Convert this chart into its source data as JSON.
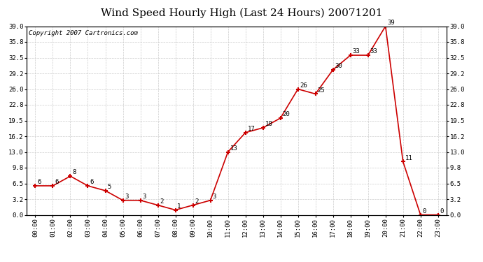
{
  "title": "Wind Speed Hourly High (Last 24 Hours) 20071201",
  "copyright": "Copyright 2007 Cartronics.com",
  "hours": [
    "00:00",
    "01:00",
    "02:00",
    "03:00",
    "04:00",
    "05:00",
    "06:00",
    "07:00",
    "08:00",
    "09:00",
    "10:00",
    "11:00",
    "12:00",
    "13:00",
    "14:00",
    "15:00",
    "16:00",
    "17:00",
    "18:00",
    "19:00",
    "20:00",
    "21:00",
    "22:00",
    "23:00"
  ],
  "values": [
    6,
    6,
    8,
    6,
    5,
    3,
    3,
    2,
    1,
    2,
    3,
    13,
    17,
    18,
    20,
    26,
    25,
    30,
    33,
    33,
    39,
    11,
    0,
    0
  ],
  "line_color": "#cc0000",
  "bg_color": "#ffffff",
  "grid_color": "#cccccc",
  "ylim_min": 0.0,
  "ylim_max": 39.0,
  "yticks": [
    0.0,
    3.2,
    6.5,
    9.8,
    13.0,
    16.2,
    19.5,
    22.8,
    26.0,
    29.2,
    32.5,
    35.8,
    39.0
  ],
  "ytick_labels": [
    "0.0",
    "3.2",
    "6.5",
    "9.8",
    "13.0",
    "16.2",
    "19.5",
    "22.8",
    "26.0",
    "29.2",
    "32.5",
    "35.8",
    "39.0"
  ],
  "title_fontsize": 11,
  "copyright_fontsize": 6.5,
  "tick_fontsize": 6.5,
  "annotation_fontsize": 6.5
}
